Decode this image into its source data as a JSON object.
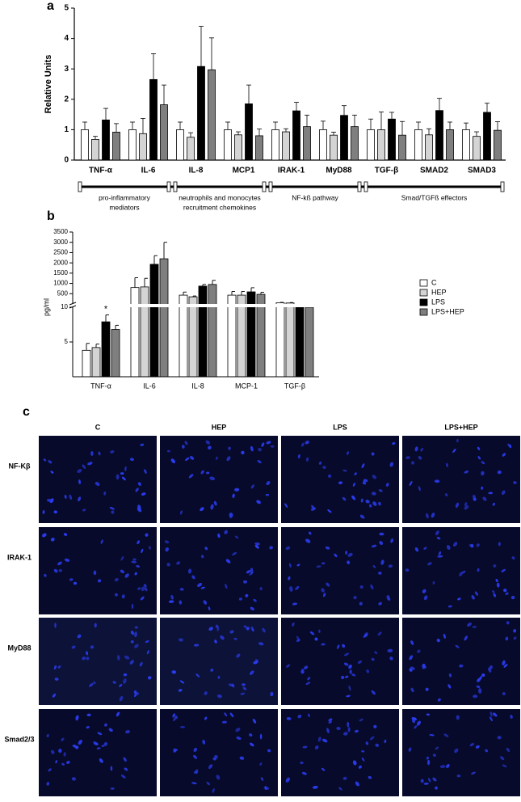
{
  "chart_data": [
    {
      "type": "bar",
      "panel": "a",
      "ylabel": "Relative Units",
      "categories": [
        "TNF-α",
        "IL-6",
        "IL-8",
        "MCP1",
        "IRAK-1",
        "MyD88",
        "TGF-β",
        "SMAD2",
        "SMAD3"
      ],
      "series": [
        {
          "name": "C",
          "color": "#ffffff",
          "values": [
            1.0,
            1.0,
            1.0,
            1.0,
            1.0,
            1.0,
            1.0,
            1.0,
            1.0
          ],
          "errors": [
            0.25,
            0.25,
            0.25,
            0.25,
            0.25,
            0.28,
            0.35,
            0.25,
            0.22
          ]
        },
        {
          "name": "HEP",
          "color": "#d4d4d4",
          "values": [
            0.68,
            0.87,
            0.75,
            0.83,
            0.93,
            0.82,
            1.0,
            0.83,
            0.78
          ],
          "errors": [
            0.1,
            0.5,
            0.15,
            0.1,
            0.1,
            0.1,
            0.58,
            0.2,
            0.15
          ]
        },
        {
          "name": "LPS",
          "color": "#000000",
          "values": [
            1.32,
            2.65,
            3.08,
            1.85,
            1.62,
            1.47,
            1.35,
            1.63,
            1.57
          ],
          "errors": [
            0.38,
            0.85,
            1.32,
            0.62,
            0.28,
            0.32,
            0.22,
            0.4,
            0.3
          ]
        },
        {
          "name": "LPS+HEP",
          "color": "#7f7f7f",
          "values": [
            0.92,
            1.82,
            2.97,
            0.8,
            1.1,
            1.1,
            0.82,
            1.0,
            0.98
          ],
          "errors": [
            0.28,
            0.65,
            1.05,
            0.22,
            0.38,
            0.38,
            0.45,
            0.25,
            0.28
          ]
        }
      ],
      "ylim": [
        0,
        5
      ],
      "yticks": [
        0,
        1,
        2,
        3,
        4,
        5
      ],
      "groups": [
        {
          "lines": [
            "pro-inflammatory",
            "mediators"
          ],
          "categories": [
            "TNF-α",
            "IL-6"
          ]
        },
        {
          "lines": [
            "neutrophils and monocytes",
            "recruitment chemokines"
          ],
          "categories": [
            "IL-8",
            "MCP1"
          ]
        },
        {
          "lines": [
            "NF-kß pathway"
          ],
          "categories": [
            "IRAK-1",
            "MyD88"
          ]
        },
        {
          "lines": [
            "Smad/TGFß effectors"
          ],
          "categories": [
            "TGF-β",
            "SMAD2",
            "SMAD3"
          ]
        }
      ]
    },
    {
      "type": "broken-bar",
      "panel": "b",
      "ylabel": "pg/ml",
      "categories": [
        "TNF-α",
        "IL-6",
        "IL-8",
        "MCP-1",
        "TGF-β"
      ],
      "series": [
        {
          "name": "C",
          "color": "#ffffff",
          "values": [
            3.8,
            800,
            430,
            430,
            60
          ],
          "errors": [
            1.0,
            480,
            150,
            180,
            20
          ]
        },
        {
          "name": "HEP",
          "color": "#d4d4d4",
          "values": [
            4.2,
            830,
            350,
            430,
            50
          ],
          "errors": [
            0.5,
            420,
            40,
            180,
            20
          ]
        },
        {
          "name": "LPS",
          "color": "#000000",
          "values": [
            7.9,
            1930,
            870,
            590,
            10
          ],
          "errors": [
            1.0,
            420,
            80,
            200,
            0
          ]
        },
        {
          "name": "LPS+HEP",
          "color": "#7f7f7f",
          "values": [
            6.8,
            2200,
            950,
            470,
            10
          ],
          "errors": [
            0.6,
            800,
            200,
            100,
            0
          ]
        }
      ],
      "ylim": [
        0,
        3500
      ],
      "yticks": [
        500,
        1000,
        1500,
        2000,
        2500,
        3000,
        3500
      ],
      "ylim_lower": [
        0,
        10
      ],
      "yticks_lower": [
        5,
        10
      ],
      "annotations": [
        {
          "text": "*",
          "category": "TNF-α",
          "series": "LPS"
        }
      ],
      "legend": "right"
    }
  ],
  "figure": {
    "panel_labels": [
      "a",
      "b",
      "c"
    ],
    "microscopy": {
      "columns": [
        "C",
        "HEP",
        "LPS",
        "LPS+HEP"
      ],
      "rows": [
        "NF-Kβ",
        "IRAK-1",
        "MyD88",
        "Smad2/3"
      ]
    }
  }
}
